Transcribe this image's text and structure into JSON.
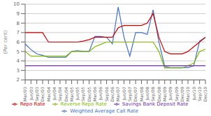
{
  "chart_data": {
    "type": "line",
    "ylabel": "(Per cent)",
    "categories": [
      "Mar/03",
      "Jun/03",
      "Sep/03",
      "Dec/03",
      "Mar/04",
      "Jun/04",
      "Sep/04",
      "Dec/04",
      "Mar/05",
      "Jun/05",
      "Sep/05",
      "Dec/05",
      "Mar/06",
      "Jun/06",
      "Sep/06",
      "Dec/06",
      "Mar/07",
      "Jun/07",
      "Sep/07",
      "Dec/07",
      "Mar/08",
      "Jun/08",
      "Sep/08",
      "Dec/08",
      "Mar/09",
      "Jun/09",
      "Sep/09",
      "Dec/09",
      "Mar/10",
      "Jun/10",
      "Sep/10",
      "Dec/10"
    ],
    "series": [
      {
        "name": "Weighted Average Call Rate",
        "color": "#4472c4",
        "values": [
          5.8,
          5.2,
          4.75,
          4.6,
          4.4,
          4.4,
          4.4,
          4.4,
          5.0,
          5.1,
          5.0,
          5.0,
          6.6,
          6.6,
          6.5,
          5.8,
          9.7,
          6.5,
          4.5,
          7.0,
          7.0,
          6.8,
          9.4,
          6.0,
          3.4,
          3.3,
          3.3,
          3.3,
          3.3,
          3.5,
          6.1,
          6.5
        ]
      },
      {
        "name": "Repo Rate",
        "color": "#cc0000",
        "values": [
          7.0,
          7.0,
          7.0,
          7.0,
          6.0,
          6.0,
          6.0,
          6.0,
          6.0,
          6.0,
          6.1,
          6.25,
          6.5,
          6.5,
          6.5,
          6.5,
          7.5,
          7.75,
          7.75,
          7.75,
          7.75,
          8.0,
          9.0,
          6.5,
          5.0,
          4.75,
          4.75,
          4.75,
          5.0,
          5.5,
          6.0,
          6.5
        ]
      },
      {
        "name": "Reverse Repo Rate",
        "color": "#7fbb00",
        "values": [
          5.0,
          4.5,
          4.5,
          4.5,
          4.5,
          4.5,
          4.5,
          4.5,
          5.0,
          5.0,
          5.0,
          5.0,
          5.5,
          5.75,
          6.0,
          6.0,
          6.0,
          6.0,
          6.0,
          6.0,
          6.0,
          6.0,
          6.0,
          5.0,
          3.25,
          3.25,
          3.25,
          3.25,
          3.5,
          3.75,
          5.0,
          5.25
        ]
      },
      {
        "name": "Savings Bank Deposit Rate",
        "color": "#7030a0",
        "values": [
          3.5,
          3.5,
          3.5,
          3.5,
          3.5,
          3.5,
          3.5,
          3.5,
          3.5,
          3.5,
          3.5,
          3.5,
          3.5,
          3.5,
          3.5,
          3.5,
          3.5,
          3.5,
          3.5,
          3.5,
          3.5,
          3.5,
          3.5,
          3.5,
          3.5,
          3.5,
          3.5,
          3.5,
          3.5,
          3.5,
          3.5,
          3.5
        ]
      }
    ],
    "ylim": [
      2,
      10
    ],
    "yticks": [
      2,
      3,
      4,
      5,
      6,
      7,
      8,
      9,
      10
    ],
    "grid": true,
    "legend": "bottom"
  }
}
